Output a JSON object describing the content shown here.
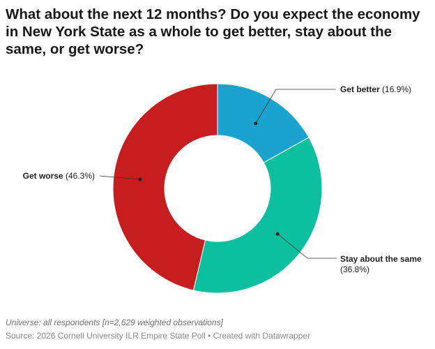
{
  "title": "What about the next 12 months? Do you expect the economy in New York State as a whole to get better, stay about the same, or get worse?",
  "notes": "Universe: all respondents [n=2,629 weighted observations]",
  "source": "Source: 2026 Cornell University ILR Empire State Poll • Created with Datawrapper",
  "chart_data": {
    "type": "pie",
    "subtype": "donut",
    "title": "What about the next 12 months? Do you expect the economy in New York State as a whole to get better, stay about the same, or get worse?",
    "categories": [
      "Get better",
      "Stay about the same",
      "Get worse"
    ],
    "values": [
      16.9,
      36.8,
      46.3
    ],
    "value_labels": [
      "(16.9%)",
      "(36.8%)",
      "(46.3%)"
    ],
    "colors": [
      "#1ba3cf",
      "#0bbf9f",
      "#c81d1f"
    ],
    "legend": "none"
  }
}
